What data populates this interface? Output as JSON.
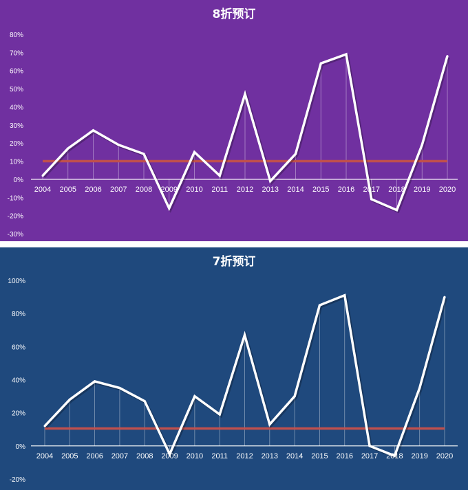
{
  "chart_data": [
    {
      "type": "line",
      "title": "8折预订",
      "background": "#7030A0",
      "line_color": "#FFFFFF",
      "ref_line_color": "#C0504D",
      "categories": [
        "2004",
        "2005",
        "2006",
        "2007",
        "2008",
        "2009",
        "2010",
        "2011",
        "2012",
        "2013",
        "2014",
        "2015",
        "2016",
        "2017",
        "2018",
        "2019",
        "2020"
      ],
      "series": [
        {
          "values": [
            2,
            17,
            27,
            19,
            14,
            -16,
            15,
            2,
            47,
            -1,
            14,
            64,
            69,
            -11,
            -17,
            19,
            68
          ]
        },
        {
          "values": [
            10,
            10,
            10,
            10,
            10,
            10,
            10,
            10,
            10,
            10,
            10,
            10,
            10,
            10,
            10,
            10,
            10
          ]
        }
      ],
      "ylim": [
        -30,
        80
      ],
      "yticks": [
        -30,
        -20,
        -10,
        0,
        10,
        20,
        30,
        40,
        50,
        60,
        70,
        80
      ],
      "ytick_labels": [
        "-30%",
        "-20%",
        "-10%",
        "0%",
        "10%",
        "20%",
        "30%",
        "40%",
        "50%",
        "60%",
        "70%",
        "80%"
      ],
      "xlabel": "",
      "ylabel": "",
      "grid": false
    },
    {
      "type": "line",
      "title": "7折预订",
      "background": "#1F497D",
      "line_color": "#FFFFFF",
      "ref_line_color": "#C0504D",
      "categories": [
        "2004",
        "2005",
        "2006",
        "2007",
        "2008",
        "2009",
        "2010",
        "2011",
        "2012",
        "2013",
        "2014",
        "2015",
        "2016",
        "2017",
        "2018",
        "2019",
        "2020"
      ],
      "series": [
        {
          "values": [
            12,
            28,
            39,
            35,
            27,
            -5,
            30,
            19,
            67,
            13,
            30,
            85,
            91,
            0,
            -6,
            35,
            90
          ]
        },
        {
          "values": [
            10.5,
            10.5,
            10.5,
            10.5,
            10.5,
            10.5,
            10.5,
            10.5,
            10.5,
            10.5,
            10.5,
            10.5,
            10.5,
            10.5,
            10.5,
            10.5,
            10.5
          ]
        }
      ],
      "ylim": [
        -20,
        100
      ],
      "yticks": [
        -20,
        0,
        20,
        40,
        60,
        80,
        100
      ],
      "ytick_labels": [
        "-20%",
        "0%",
        "20%",
        "40%",
        "60%",
        "80%",
        "100%"
      ],
      "xlabel": "",
      "ylabel": "",
      "grid": false
    }
  ]
}
